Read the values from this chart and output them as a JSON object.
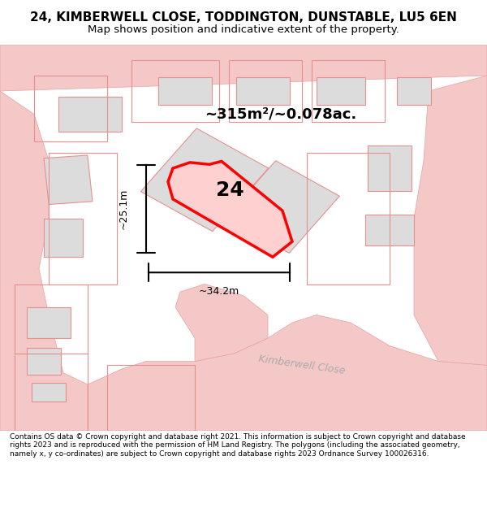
{
  "title": "24, KIMBERWELL CLOSE, TODDINGTON, DUNSTABLE, LU5 6EN",
  "subtitle": "Map shows position and indicative extent of the property.",
  "footer": "Contains OS data © Crown copyright and database right 2021. This information is subject to Crown copyright and database rights 2023 and is reproduced with the permission of HM Land Registry. The polygons (including the associated geometry, namely x, y co-ordinates) are subject to Crown copyright and database rights 2023 Ordnance Survey 100026316.",
  "area_text": "~315m²/~0.078ac.",
  "label_number": "24",
  "dim_width": "~34.2m",
  "dim_height": "~25.1m",
  "road_label": "Kimberwell Close",
  "bg_color": "#ffffff",
  "map_bg": "#fdf5f5",
  "road_color": "#f5c8c8",
  "road_edge": "#e8a0a0",
  "building_color": "#dcdcdc",
  "outline_color": "#e89090",
  "highlight_color": "#ff0000",
  "highlight_fill": "#ffd0d0",
  "title_fontsize": 11,
  "subtitle_fontsize": 9.5,
  "footer_fontsize": 6.5
}
